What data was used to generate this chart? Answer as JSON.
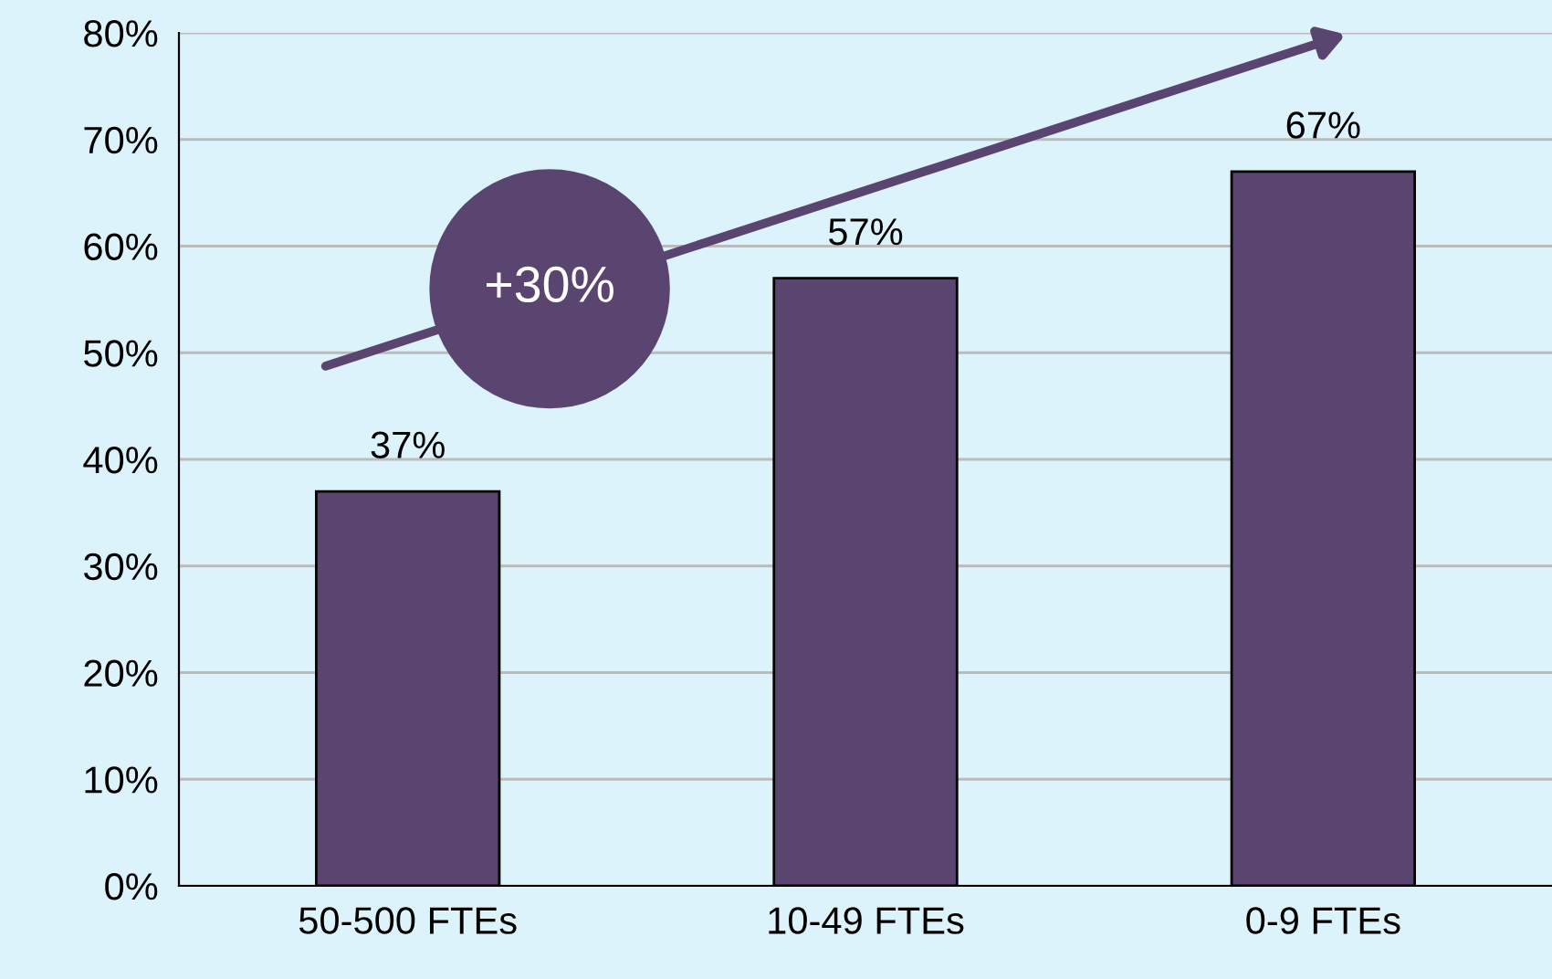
{
  "chart_data": {
    "type": "bar",
    "categories": [
      "50-500 FTEs",
      "10-49 FTEs",
      "0-9 FTEs"
    ],
    "values": [
      37,
      57,
      67
    ],
    "value_labels": [
      "37%",
      "57%",
      "67%"
    ],
    "color": "#5a4570",
    "ylim": [
      0,
      80
    ],
    "yticks": [
      {
        "value": 0,
        "label": "0%"
      },
      {
        "value": 10,
        "label": "10%"
      },
      {
        "value": 20,
        "label": "20%"
      },
      {
        "value": 30,
        "label": "30%"
      },
      {
        "value": 40,
        "label": "40%"
      },
      {
        "value": 50,
        "label": "50%"
      },
      {
        "value": 60,
        "label": "60%"
      },
      {
        "value": 70,
        "label": "70%"
      },
      {
        "value": 80,
        "label": "80%"
      }
    ],
    "grid": "y",
    "annotations": [
      "+30%"
    ]
  }
}
